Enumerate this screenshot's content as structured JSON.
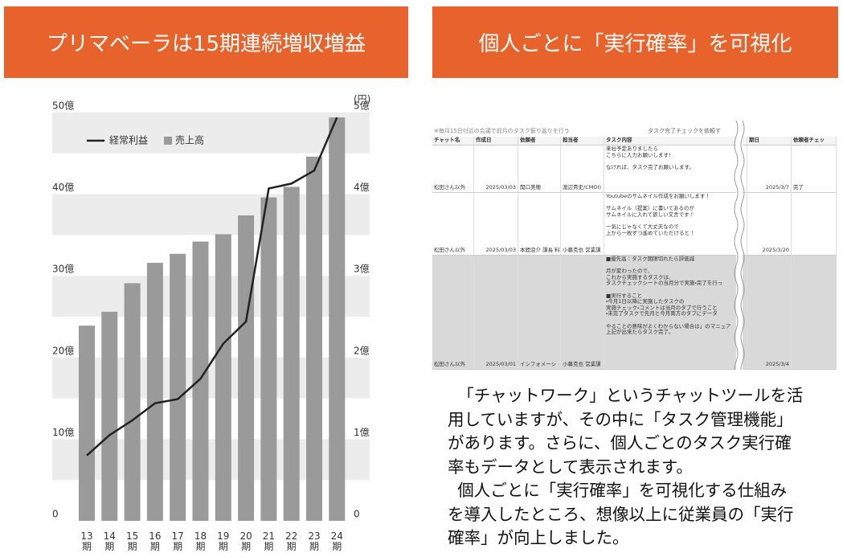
{
  "left_panel": {
    "header": "プリマベーラは15期連続増収増益"
  },
  "chart_data": {
    "type": "bar",
    "categories": [
      "13期",
      "14期",
      "15期",
      "16期",
      "17期",
      "18期",
      "19期",
      "20期",
      "21期",
      "22期",
      "23期",
      "24期"
    ],
    "series": [
      {
        "name": "経常利益",
        "type": "line",
        "axis": "y2",
        "color": "#222222",
        "values": [
          0.8,
          1.05,
          1.23,
          1.44,
          1.49,
          1.74,
          2.17,
          2.44,
          4.07,
          4.13,
          4.29,
          4.94
        ]
      },
      {
        "name": "売上高",
        "type": "bar",
        "color": "#9a9a9a",
        "values": [
          23.9,
          25.6,
          29.1,
          31.6,
          32.7,
          34.2,
          35.1,
          37.4,
          39.6,
          40.9,
          44.6,
          49.4
        ]
      }
    ],
    "ylim": [
      0,
      50
    ],
    "yticks": [
      0,
      {
        "value": 10,
        "label": "10億"
      },
      {
        "value": 20,
        "label": "20億"
      },
      {
        "value": 30,
        "label": "30億"
      },
      {
        "value": 40,
        "label": "40億"
      },
      {
        "value": 50,
        "label": "50億"
      }
    ],
    "y2lim": [
      0,
      5
    ],
    "y2ticks": [
      0,
      {
        "value": 1,
        "label": "1億"
      },
      {
        "value": 2,
        "label": "2億"
      },
      {
        "value": 3,
        "label": "3億"
      },
      {
        "value": 4,
        "label": "4億"
      },
      {
        "value": 5,
        "label": "5億"
      }
    ],
    "y2_unit_label": "(円)",
    "grid": true,
    "legend": "top-left"
  },
  "right_panel": {
    "header": "個人ごとに「実行確率」を可視化",
    "sheet": {
      "note": "※毎月15日付近の会議で前月のタスク振り返りを行う",
      "note2": "タスク完了チェックを依頼す",
      "columns": [
        "チャット名",
        "作成日",
        "依頼者",
        "担当者",
        "タスク内容",
        "期日",
        "依頼者チェッ"
      ],
      "rows": [
        {
          "chat": "松田さん以外",
          "created": "2025/03/03",
          "requester": "関口美穂",
          "assignee": "渡辺貴史/CMO(I",
          "content": [
            [
              "来社予定ありましたら",
              "こちらに入力お願いします!"
            ],
            [
              "なければ、タスク完了お願いします。"
            ]
          ],
          "due": "2025/3/7",
          "check": "完了"
        },
        {
          "chat": "松田さん以外",
          "created": "2025/03/03",
          "requester": "本間浪介 課長 料",
          "assignee": "小幕克也 営業課",
          "content": [
            [
              "Youtubeのサムネイル作成をお願いします！"
            ],
            [
              "サムネイル（提案）に書いてあるのが",
              "サムネイルに入れて欲しい文言です！"
            ],
            [
              "一気にじゃなくて大丈夫なので",
              "上から一枚ずつ進めていただけると！"
            ]
          ],
          "due": "2025/3/20"
        },
        {
          "chat": "松田さん以外",
          "created": "2025/03/01",
          "requester": "インフォメーシ",
          "assignee": "小幕克也 営業課",
          "content": [
            [
              "■優先高：タスク期限切れたら評価減"
            ],
            [
              "月が変わったので、",
              "これから実施するタスクは、",
              "タスクチェックシートの当月分で実施・完了を行っ"
            ],
            [
              "■実行すること",
              "・今月1日以降に実施したタスクの",
              "実施チェック・コメントは当月のタブで行うこと",
              "・未完了タスクで先月と今月両方のタブにデータ"
            ],
            [
              "やることの意味がよくわからない場合は」のマニュア",
              "上記が出来たらタスク完了。"
            ]
          ],
          "due": "2025/3/4"
        }
      ]
    },
    "body": [
      [
        "「チャットワーク」というチャットツールを活",
        "用していますが、その中に「タスク管理機能」",
        "があります。さらに、個人ごとのタスク実行確",
        "率もデータとして表示されます。"
      ],
      [
        "個人ごとに「実行確率」を可視化する仕組み",
        "を導入したところ、想像以上に従業員の「実行",
        "確率」が向上しました。"
      ]
    ]
  }
}
